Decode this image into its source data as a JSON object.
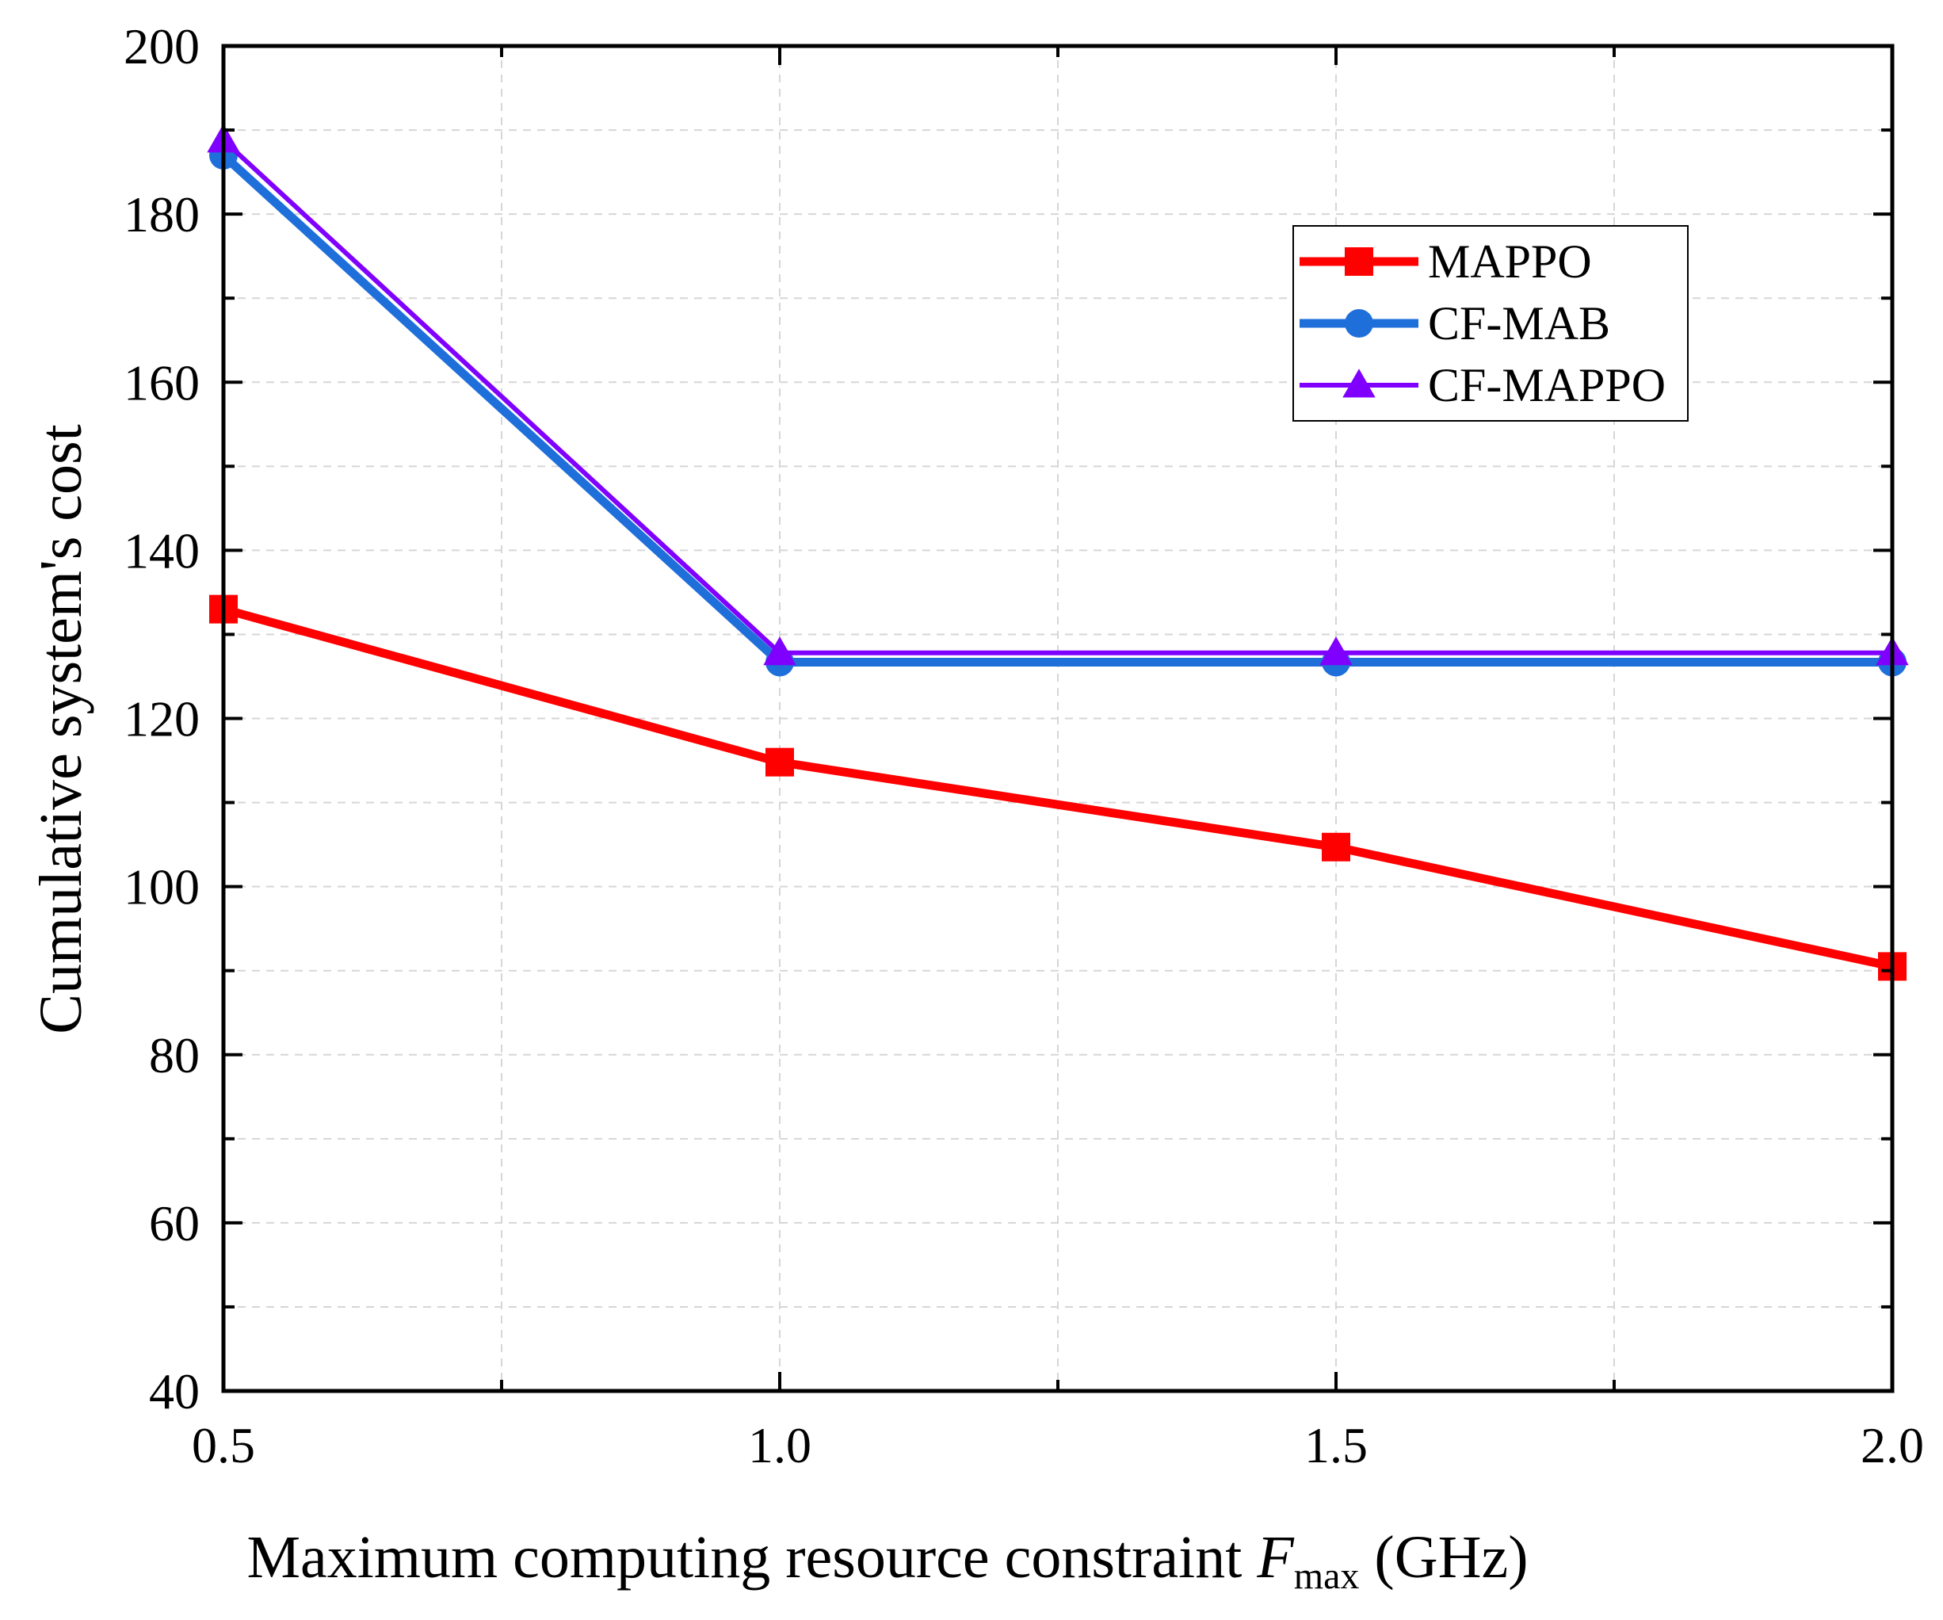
{
  "chart_data": {
    "type": "line",
    "title": "",
    "xlabel": {
      "main": "Maximum computing resource constraint ",
      "var": "F",
      "sub": "max",
      "unit": " (GHz)"
    },
    "ylabel": "Cumulative system's cost",
    "xlim": [
      0.5,
      2.0
    ],
    "ylim": [
      40,
      200
    ],
    "xticks": [
      "0.5",
      "1.0",
      "1.5",
      "2.0"
    ],
    "xtick_values": [
      0.5,
      1.0,
      1.5,
      2.0
    ],
    "yticks": [
      "40",
      "60",
      "80",
      "100",
      "120",
      "140",
      "160",
      "180",
      "200"
    ],
    "ytick_values": [
      40,
      60,
      80,
      100,
      120,
      140,
      160,
      180,
      200
    ],
    "grid": true,
    "legend_position": "upper-right",
    "x": [
      0.5,
      1.0,
      1.5,
      2.0
    ],
    "series": [
      {
        "name": "MAPPO",
        "values": [
          133,
          114.8,
          104.7,
          90.5
        ],
        "color": "#ff0000",
        "marker": "square"
      },
      {
        "name": "CF-MAB",
        "values": [
          187,
          126.7,
          126.7,
          126.7
        ],
        "color": "#1f6fdb",
        "marker": "circle"
      },
      {
        "name": "CF-MAPPO",
        "values": [
          188.8,
          127.8,
          127.8,
          127.8
        ],
        "color": "#8000ff",
        "marker": "triangle"
      }
    ]
  }
}
